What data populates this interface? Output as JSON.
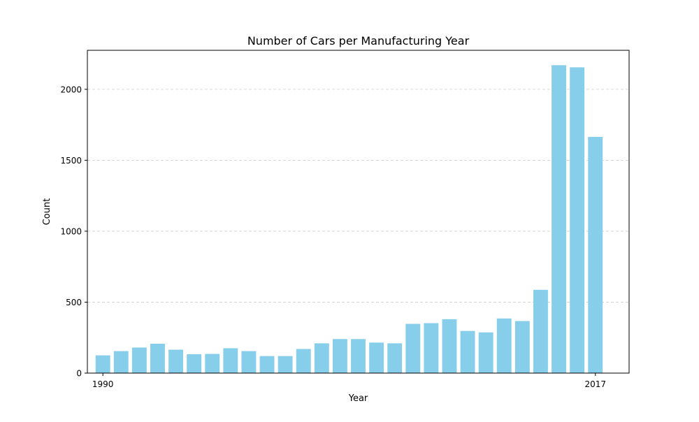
{
  "chart_data": {
    "type": "bar",
    "title": "Number of Cars per Manufacturing Year",
    "xlabel": "Year",
    "ylabel": "Count",
    "x": [
      1990,
      1991,
      1992,
      1993,
      1994,
      1995,
      1996,
      1997,
      1998,
      1999,
      2000,
      2001,
      2002,
      2003,
      2004,
      2005,
      2006,
      2007,
      2008,
      2009,
      2010,
      2011,
      2012,
      2013,
      2014,
      2015,
      2016,
      2017
    ],
    "values": [
      125,
      155,
      180,
      207,
      165,
      133,
      135,
      175,
      155,
      120,
      120,
      170,
      210,
      240,
      240,
      215,
      210,
      347,
      352,
      380,
      297,
      287,
      385,
      367,
      587,
      2170,
      2155,
      1665
    ],
    "xticks": [
      1990,
      2017
    ],
    "yticks": [
      0,
      500,
      1000,
      1500,
      2000
    ],
    "ylim": [
      0,
      2275
    ],
    "xlim": [
      1989.15,
      2018.85
    ],
    "grid": "y-dashed",
    "bar_color": "#87CEEB",
    "grid_color": "#cccccc"
  }
}
